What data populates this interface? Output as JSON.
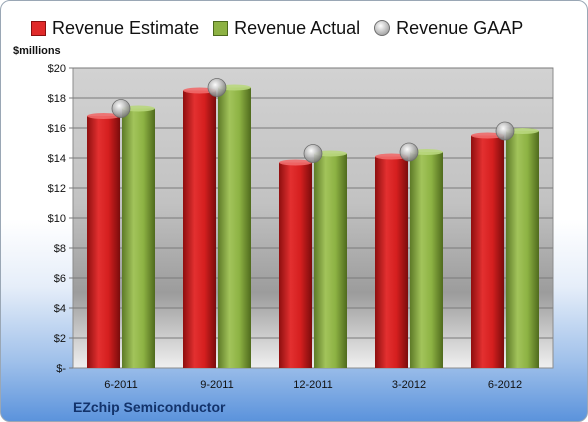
{
  "legend": {
    "estimate": "Revenue Estimate",
    "actual": "Revenue Actual",
    "gaap": "Revenue GAAP"
  },
  "unit_label": "$millions",
  "footer": {
    "company": "EZchip Semiconductor"
  },
  "colors": {
    "estimate": "#e02a2a",
    "actual": "#8db243",
    "gaap": "#b8b8b8"
  },
  "chart_data": {
    "type": "bar",
    "categories": [
      "6-2011",
      "9-2011",
      "12-2011",
      "3-2012",
      "6-2012"
    ],
    "series": [
      {
        "name": "Revenue Estimate",
        "values": [
          16.8,
          18.5,
          13.7,
          14.1,
          15.5
        ]
      },
      {
        "name": "Revenue Actual",
        "values": [
          17.3,
          18.7,
          14.3,
          14.4,
          15.8
        ]
      },
      {
        "name": "Revenue GAAP",
        "values": [
          17.3,
          18.7,
          14.3,
          14.4,
          15.8
        ],
        "marker": "circle"
      }
    ],
    "yticks": [
      "$-",
      "$2",
      "$4",
      "$6",
      "$8",
      "$10",
      "$12",
      "$14",
      "$16",
      "$18",
      "$20"
    ],
    "ylim": [
      0,
      20
    ],
    "ylabel": "$millions",
    "grid": true,
    "legend_position": "top"
  }
}
